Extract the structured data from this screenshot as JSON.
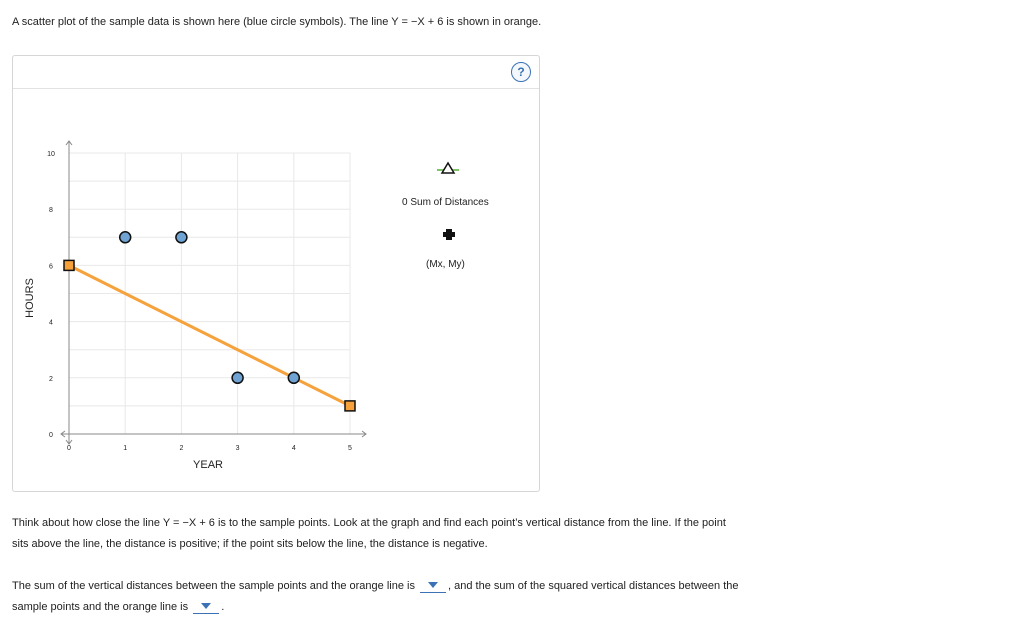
{
  "intro_text": "A scatter plot of the sample data is shown here (blue circle symbols). The line Y = −X + 6 is shown in orange.",
  "help_label": "?",
  "chart_data": {
    "type": "scatter",
    "xlabel": "YEAR",
    "ylabel": "HOURS",
    "xlim": [
      0,
      5
    ],
    "ylim": [
      0,
      10
    ],
    "x_ticks": [
      "0",
      "1",
      "2",
      "3",
      "4",
      "5"
    ],
    "y_ticks": [
      "0",
      "2",
      "4",
      "6",
      "8",
      "10"
    ],
    "grid": true,
    "points": [
      {
        "x": 1,
        "y": 7
      },
      {
        "x": 2,
        "y": 7
      },
      {
        "x": 3,
        "y": 2
      },
      {
        "x": 4,
        "y": 2
      }
    ],
    "line": {
      "equation": "Y = −X + 6",
      "from": [
        0,
        6
      ],
      "to": [
        5,
        1
      ]
    },
    "colors": {
      "points": "#6fa3d3",
      "line": "#f7a13a",
      "grid": "#e8e8e8"
    }
  },
  "legend": {
    "distances_label": "0 Sum of Distances",
    "mean_label": "(Mx, My)"
  },
  "instructions": {
    "line1": "Think about how close the line Y = −X + 6 is to the sample points. Look at the graph and find each point’s vertical distance from the line. If the point",
    "line2": "sits above the line, the distance is positive; if the point sits below the line, the distance is negative."
  },
  "question": {
    "part1": "The sum of the vertical distances between the sample points and the orange line is",
    "part2": ", and the sum of the squared vertical distances between the",
    "part3": "sample points and the orange line is",
    "part4": "."
  }
}
